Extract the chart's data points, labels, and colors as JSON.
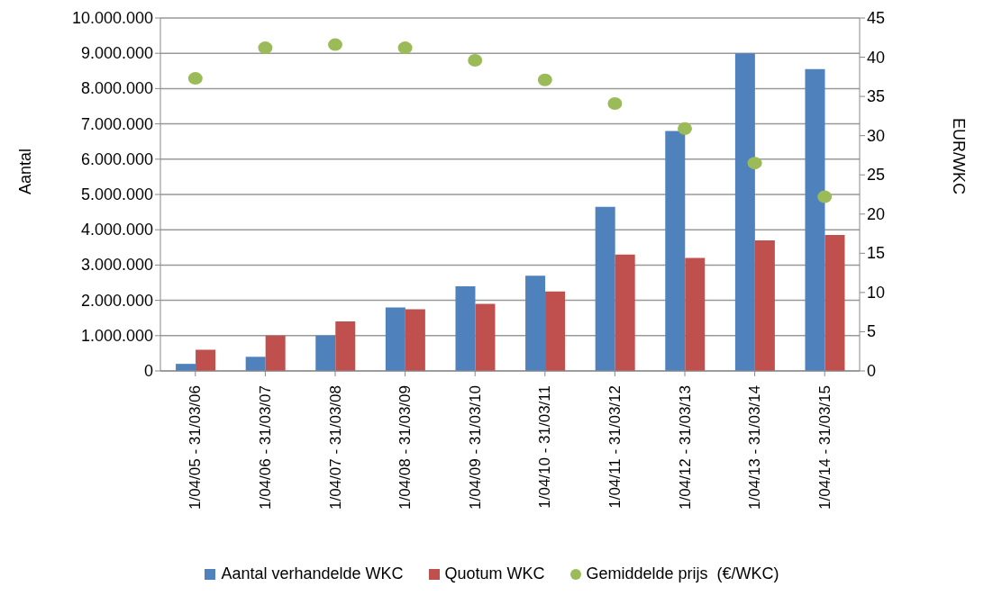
{
  "chart_data": {
    "type": "bar",
    "ylabel": "Aantal",
    "y2label": "EUR/WKC",
    "categories": [
      "1/04/05 - 31/03/06",
      "1/04/06 - 31/03/07",
      "1/04/07 - 31/03/08",
      "1/04/08 - 31/03/09",
      "1/04/09 - 31/03/10",
      "1/04/10 - 31/03/11",
      "1/04/11 - 31/03/12",
      "1/04/12 - 31/03/13",
      "1/04/13 - 31/03/14",
      "1/04/14 - 31/03/15"
    ],
    "series": [
      {
        "name": "Aantal verhandelde WKC",
        "color": "#4f81bd",
        "values": [
          200000,
          400000,
          1000000,
          1800000,
          2400000,
          2700000,
          4650000,
          6800000,
          9000000,
          8550000
        ]
      },
      {
        "name": "Quotum WKC",
        "color": "#c0504d",
        "values": [
          600000,
          1000000,
          1400000,
          1750000,
          1900000,
          2250000,
          3300000,
          3200000,
          3700000,
          3850000
        ]
      },
      {
        "name": "Gemiddelde prijs  (€/WKC)",
        "type": "scatter",
        "axis": "y2",
        "marker": "circle",
        "color": "#9bbb59",
        "values": [
          37.3,
          41.2,
          41.6,
          41.2,
          39.6,
          37.1,
          34.1,
          30.9,
          26.5,
          22.2
        ]
      }
    ],
    "ylim": [
      0,
      10000000
    ],
    "yticks": [
      {
        "value": 0,
        "label": "0"
      },
      {
        "value": 1000000,
        "label": "1.000.000"
      },
      {
        "value": 2000000,
        "label": "2.000.000"
      },
      {
        "value": 3000000,
        "label": "3.000.000"
      },
      {
        "value": 4000000,
        "label": "4.000.000"
      },
      {
        "value": 5000000,
        "label": "5.000.000"
      },
      {
        "value": 6000000,
        "label": "6.000.000"
      },
      {
        "value": 7000000,
        "label": "7.000.000"
      },
      {
        "value": 8000000,
        "label": "8.000.000"
      },
      {
        "value": 9000000,
        "label": "9.000.000"
      },
      {
        "value": 10000000,
        "label": "10.000.000"
      }
    ],
    "y2lim": [
      0,
      45
    ],
    "y2ticks": [
      0,
      5,
      10,
      15,
      20,
      25,
      30,
      35,
      40,
      45
    ],
    "grid": "y",
    "legend": "bottom"
  }
}
